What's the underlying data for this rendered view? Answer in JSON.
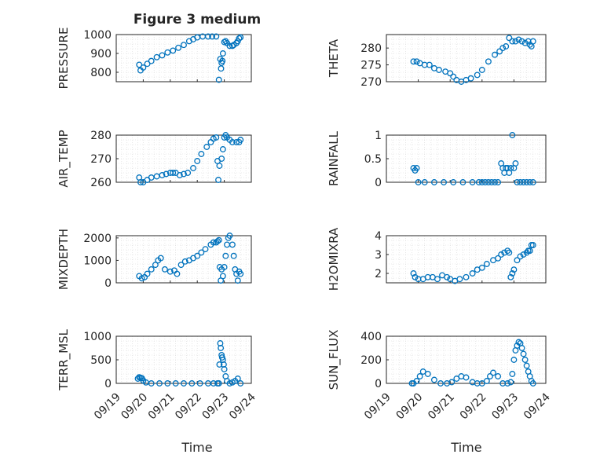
{
  "figure_title": "Figure 3 medium",
  "marker_color": "#0072BD",
  "chart_data": [
    {
      "type": "scatter",
      "panel": "pressure",
      "ylabel": "PRESSURE",
      "ylim": [
        750,
        1000
      ],
      "yticks": [
        800,
        900,
        1000
      ],
      "xlim": [
        0,
        5
      ],
      "xticks": [
        0,
        1,
        2,
        3,
        4,
        5
      ],
      "x": [
        0.85,
        0.9,
        1.0,
        1.15,
        1.3,
        1.5,
        1.7,
        1.9,
        2.1,
        2.3,
        2.5,
        2.7,
        2.85,
        3.0,
        3.2,
        3.4,
        3.55,
        3.7,
        3.8,
        3.85,
        3.88,
        3.9,
        3.93,
        3.95,
        4.0,
        4.05,
        4.1,
        4.2,
        4.3,
        4.35,
        4.45,
        4.5,
        4.55,
        4.6
      ],
      "y": [
        840,
        810,
        825,
        845,
        860,
        880,
        890,
        905,
        915,
        930,
        945,
        965,
        975,
        985,
        990,
        990,
        990,
        990,
        760,
        870,
        820,
        850,
        860,
        900,
        960,
        965,
        955,
        940,
        940,
        945,
        955,
        965,
        980,
        985
      ]
    },
    {
      "type": "scatter",
      "panel": "theta",
      "ylabel": "THETA",
      "ylim": [
        270,
        284
      ],
      "yticks": [
        270,
        275,
        280
      ],
      "xlim": [
        0,
        5
      ],
      "xticks": [
        0,
        1,
        2,
        3,
        4,
        5
      ],
      "x": [
        0.85,
        0.95,
        1.05,
        1.2,
        1.35,
        1.5,
        1.65,
        1.85,
        2.0,
        2.1,
        2.2,
        2.35,
        2.5,
        2.65,
        2.85,
        3.0,
        3.2,
        3.4,
        3.55,
        3.65,
        3.75,
        3.85,
        3.95,
        4.05,
        4.15,
        4.25,
        4.35,
        4.45,
        4.5,
        4.55,
        4.6
      ],
      "y": [
        276,
        276,
        275.5,
        275,
        275,
        274,
        273.5,
        273,
        272.5,
        271.5,
        270.5,
        270,
        270.5,
        271,
        272,
        273.5,
        276,
        278,
        279,
        280,
        280.5,
        283,
        282,
        282,
        282.5,
        282,
        281.5,
        282,
        281,
        280.5,
        282
      ]
    },
    {
      "type": "scatter",
      "panel": "air_temp",
      "ylabel": "AIR_TEMP",
      "ylim": [
        260,
        280
      ],
      "yticks": [
        260,
        270,
        280
      ],
      "xlim": [
        0,
        5
      ],
      "xticks": [
        0,
        1,
        2,
        3,
        4,
        5
      ],
      "x": [
        0.85,
        0.9,
        1.0,
        1.15,
        1.3,
        1.5,
        1.7,
        1.85,
        2.0,
        2.1,
        2.2,
        2.35,
        2.5,
        2.65,
        2.85,
        3.0,
        3.15,
        3.35,
        3.5,
        3.6,
        3.7,
        3.75,
        3.78,
        3.82,
        3.9,
        3.95,
        4.0,
        4.05,
        4.1,
        4.2,
        4.3,
        4.45,
        4.55,
        4.6
      ],
      "y": [
        262,
        260,
        260,
        261,
        262,
        262.5,
        263,
        263.5,
        264,
        264,
        264,
        263,
        263.5,
        264,
        266,
        269,
        272,
        275,
        277,
        278.5,
        279,
        269,
        261,
        267,
        270,
        274,
        279,
        280,
        279,
        278,
        277,
        277,
        277,
        278
      ]
    },
    {
      "type": "scatter",
      "panel": "rainfall",
      "ylabel": "RAINFALL",
      "ylim": [
        0,
        1
      ],
      "yticks": [
        0,
        0.5,
        1
      ],
      "xlim": [
        0,
        5
      ],
      "xticks": [
        0,
        1,
        2,
        3,
        4,
        5
      ],
      "x": [
        0.85,
        0.9,
        0.95,
        1.0,
        1.2,
        1.5,
        1.8,
        2.1,
        2.4,
        2.7,
        2.9,
        3.0,
        3.1,
        3.2,
        3.3,
        3.4,
        3.5,
        3.6,
        3.65,
        3.7,
        3.75,
        3.8,
        3.85,
        3.9,
        3.95,
        4.0,
        4.05,
        4.1,
        4.2,
        4.3,
        4.4,
        4.5,
        4.6
      ],
      "y": [
        0.3,
        0.25,
        0.3,
        0,
        0,
        0,
        0,
        0,
        0,
        0,
        0,
        0,
        0,
        0,
        0,
        0,
        0,
        0.4,
        0.3,
        0.2,
        0.3,
        0.3,
        0.2,
        0.3,
        1.0,
        0.3,
        0.4,
        0,
        0,
        0,
        0,
        0,
        0
      ]
    },
    {
      "type": "scatter",
      "panel": "mixdepth",
      "ylabel": "MIXDEPTH",
      "ylim": [
        0,
        2100
      ],
      "yticks": [
        0,
        1000,
        2000
      ],
      "xlim": [
        0,
        5
      ],
      "xticks": [
        0,
        1,
        2,
        3,
        4,
        5
      ],
      "x": [
        0.85,
        0.95,
        1.05,
        1.15,
        1.3,
        1.45,
        1.55,
        1.65,
        1.8,
        2.0,
        2.15,
        2.25,
        2.4,
        2.55,
        2.7,
        2.85,
        3.0,
        3.15,
        3.3,
        3.5,
        3.6,
        3.7,
        3.75,
        3.8,
        3.83,
        3.87,
        3.9,
        3.95,
        4.0,
        4.05,
        4.1,
        4.15,
        4.2,
        4.3,
        4.35,
        4.4,
        4.45,
        4.5,
        4.55,
        4.6
      ],
      "y": [
        300,
        200,
        250,
        400,
        600,
        800,
        1000,
        1100,
        600,
        500,
        550,
        400,
        800,
        950,
        1000,
        1100,
        1200,
        1350,
        1500,
        1700,
        1800,
        1800,
        1850,
        1900,
        700,
        100,
        600,
        300,
        700,
        1200,
        1700,
        2000,
        2100,
        1700,
        1200,
        600,
        400,
        100,
        500,
        400
      ]
    },
    {
      "type": "scatter",
      "panel": "h2omixra",
      "ylabel": "H2OMIXRA",
      "ylim": [
        1.5,
        4
      ],
      "yticks": [
        2,
        3,
        4
      ],
      "xlim": [
        0,
        5
      ],
      "xticks": [
        0,
        1,
        2,
        3,
        4,
        5
      ],
      "x": [
        0.85,
        0.9,
        1.0,
        1.15,
        1.3,
        1.45,
        1.6,
        1.75,
        1.9,
        2.0,
        2.15,
        2.3,
        2.5,
        2.7,
        2.85,
        3.0,
        3.15,
        3.35,
        3.5,
        3.6,
        3.7,
        3.8,
        3.85,
        3.9,
        3.95,
        4.0,
        4.1,
        4.2,
        4.3,
        4.4,
        4.45,
        4.5,
        4.55,
        4.6
      ],
      "y": [
        2.0,
        1.8,
        1.7,
        1.7,
        1.8,
        1.8,
        1.7,
        1.9,
        1.8,
        1.7,
        1.6,
        1.7,
        1.8,
        2.0,
        2.2,
        2.3,
        2.5,
        2.7,
        2.8,
        3.0,
        3.1,
        3.2,
        3.1,
        1.8,
        2.0,
        2.2,
        2.7,
        2.9,
        3.0,
        3.1,
        3.2,
        3.2,
        3.5,
        3.5
      ]
    },
    {
      "type": "scatter",
      "panel": "terr_msl",
      "ylabel": "TERR_MSL",
      "ylim": [
        0,
        1000
      ],
      "yticks": [
        0,
        500,
        1000
      ],
      "xlim": [
        0,
        5
      ],
      "xticks": [
        0,
        1,
        2,
        3,
        4,
        5
      ],
      "x": [
        0.8,
        0.85,
        0.9,
        0.95,
        1.0,
        1.1,
        1.3,
        1.6,
        1.9,
        2.2,
        2.5,
        2.8,
        3.1,
        3.4,
        3.6,
        3.75,
        3.8,
        3.82,
        3.85,
        3.87,
        3.9,
        3.92,
        3.95,
        3.98,
        4.0,
        4.05,
        4.1,
        4.2,
        4.3,
        4.4,
        4.5,
        4.6
      ],
      "y": [
        100,
        130,
        120,
        110,
        60,
        20,
        0,
        0,
        0,
        0,
        0,
        0,
        0,
        0,
        0,
        0,
        0,
        400,
        850,
        750,
        600,
        550,
        500,
        400,
        300,
        150,
        50,
        0,
        20,
        50,
        100,
        0
      ]
    },
    {
      "type": "scatter",
      "panel": "sun_flux",
      "ylabel": "SUN_FLUX",
      "ylim": [
        0,
        400
      ],
      "yticks": [
        0,
        200,
        400
      ],
      "xlim": [
        0,
        5
      ],
      "xticks": [
        0,
        1,
        2,
        3,
        4,
        5
      ],
      "x": [
        0.8,
        0.85,
        0.95,
        1.05,
        1.15,
        1.3,
        1.5,
        1.7,
        1.9,
        2.05,
        2.2,
        2.35,
        2.5,
        2.7,
        2.85,
        3.0,
        3.15,
        3.25,
        3.35,
        3.5,
        3.65,
        3.8,
        3.9,
        3.95,
        4.0,
        4.05,
        4.1,
        4.15,
        4.2,
        4.25,
        4.3,
        4.35,
        4.4,
        4.45,
        4.5,
        4.55,
        4.6
      ],
      "y": [
        0,
        0,
        20,
        60,
        100,
        80,
        30,
        0,
        0,
        10,
        40,
        60,
        50,
        10,
        0,
        0,
        20,
        60,
        90,
        60,
        0,
        0,
        10,
        80,
        200,
        280,
        320,
        350,
        340,
        300,
        250,
        200,
        150,
        100,
        60,
        20,
        0
      ]
    }
  ],
  "x_tick_labels": [
    "09/19",
    "09/20",
    "09/21",
    "09/22",
    "09/23",
    "09/24"
  ],
  "x_label": "Time"
}
